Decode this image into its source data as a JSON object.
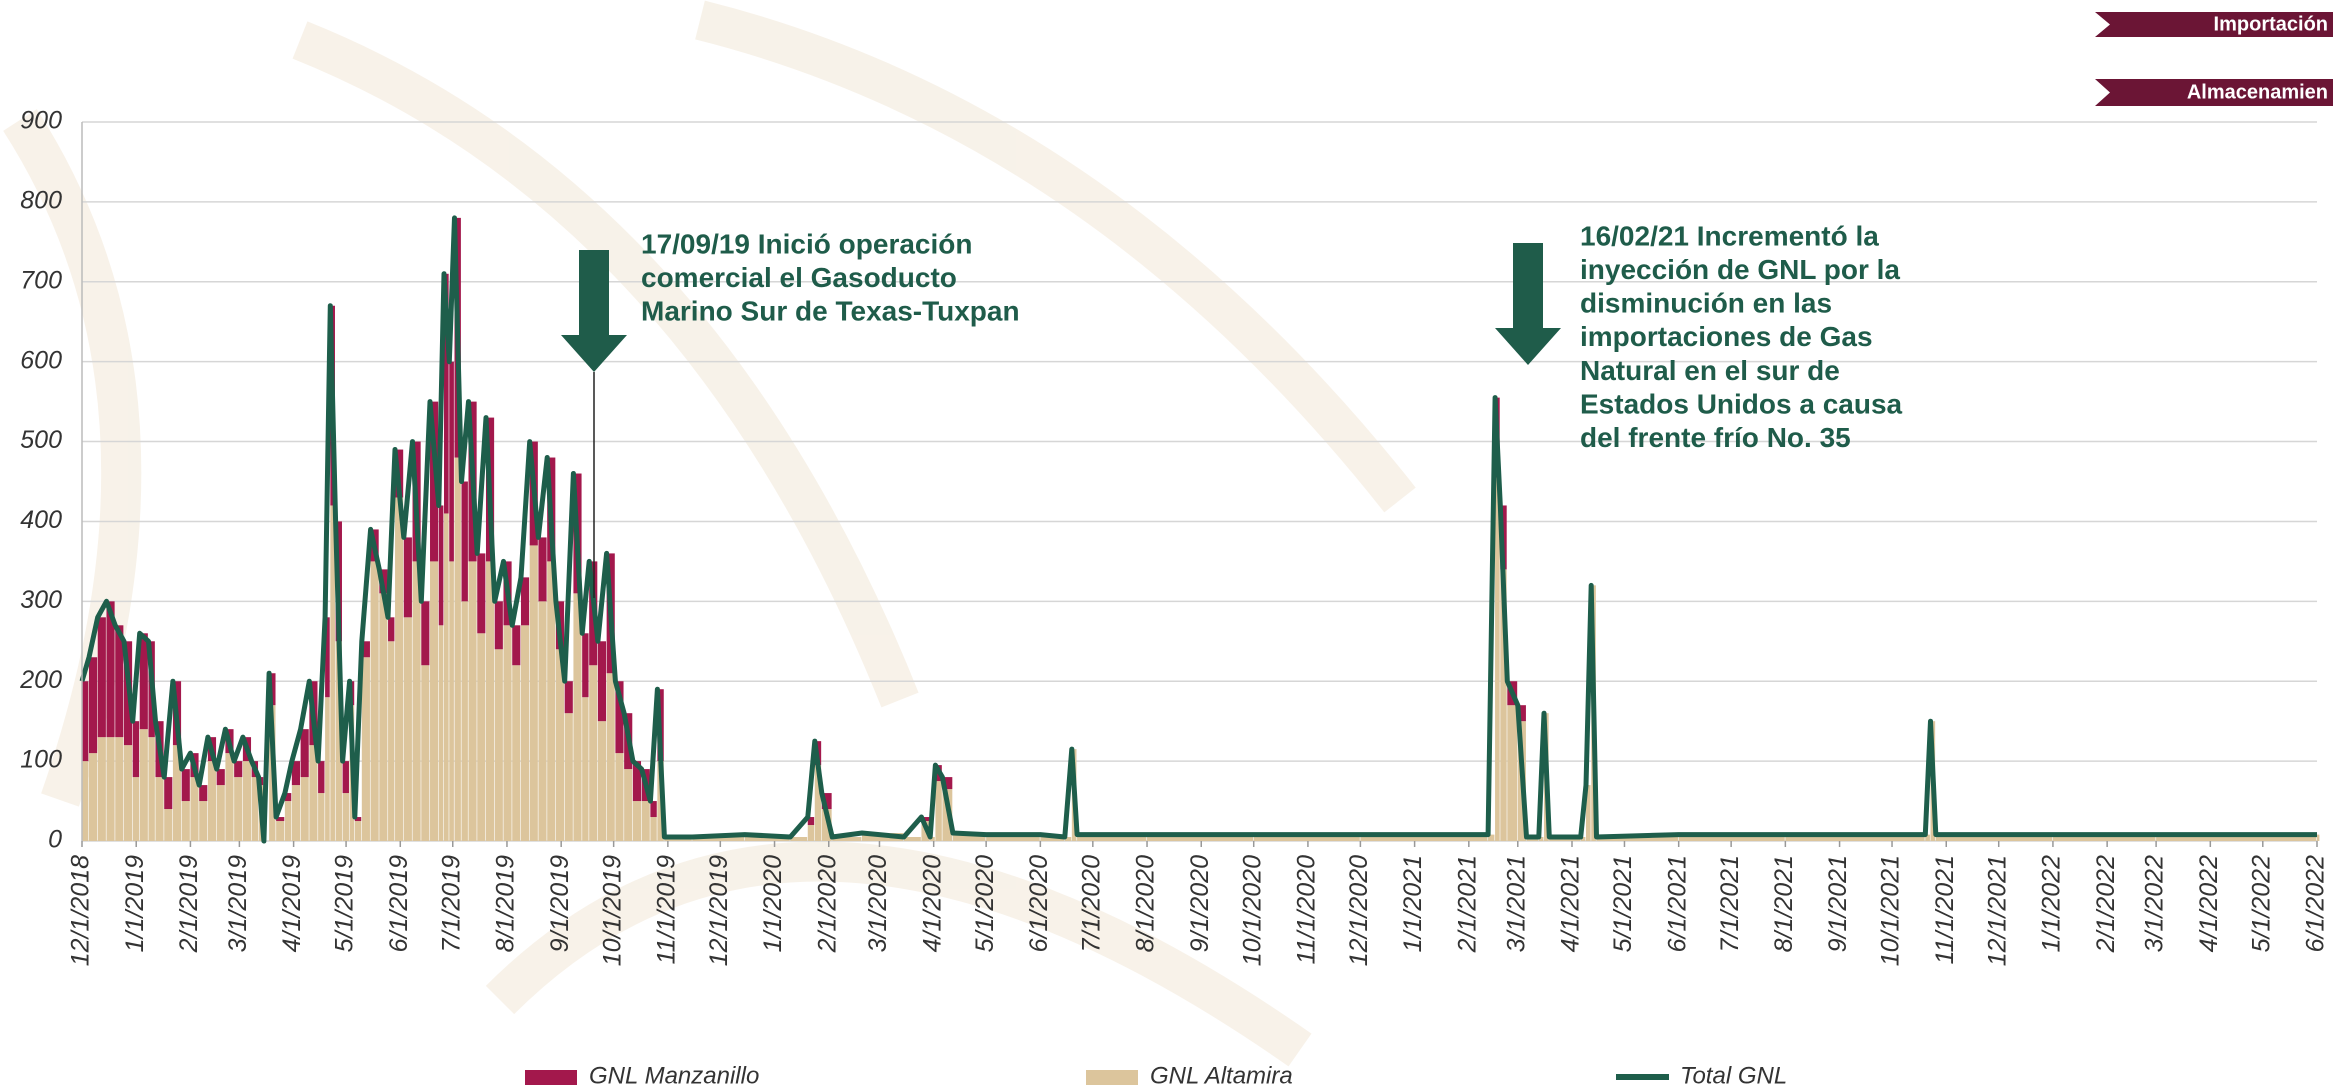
{
  "header_tabs": [
    "Importación",
    "Almacenamien"
  ],
  "chart_data": {
    "type": "bar",
    "stacked": true,
    "grid": true,
    "legend": "bottom",
    "annotations": [
      [
        "17/09/19 Inició operación",
        "comercial el Gasoducto",
        "Marino Sur de Texas-Tuxpan"
      ],
      [
        "16/02/21 Incrementó la",
        "inyección de GNL por la",
        "disminución en las",
        "importaciones de Gas",
        "Natural en el sur de",
        "Estados Unidos a causa",
        "del frente frío No. 35"
      ]
    ],
    "xlim": [
      "12/1/2018",
      "6/1/2022"
    ],
    "xticks": [
      "12/1/2018",
      "1/1/2019",
      "2/1/2019",
      "3/1/2019",
      "4/1/2019",
      "5/1/2019",
      "6/1/2019",
      "7/1/2019",
      "8/1/2019",
      "9/1/2019",
      "10/1/2019",
      "11/1/2019",
      "12/1/2019",
      "1/1/2020",
      "2/1/2020",
      "3/1/2020",
      "4/1/2020",
      "5/1/2020",
      "6/1/2020",
      "7/1/2020",
      "8/1/2020",
      "9/1/2020",
      "10/1/2020",
      "11/1/2020",
      "12/1/2020",
      "1/1/2021",
      "2/1/2021",
      "3/1/2021",
      "4/1/2021",
      "5/1/2021",
      "6/1/2021",
      "7/1/2021",
      "8/1/2021",
      "9/1/2021",
      "10/1/2021",
      "11/1/2021",
      "12/1/2021",
      "1/1/2022",
      "2/1/2022",
      "3/1/2022",
      "4/1/2022",
      "5/1/2022",
      "6/1/2022"
    ],
    "ylim": [
      0,
      900
    ],
    "yticks": [
      0,
      100,
      200,
      300,
      400,
      500,
      600,
      700,
      800,
      900
    ],
    "x": [
      "12/1/2018",
      "12/5/2018",
      "12/10/2018",
      "12/15/2018",
      "12/20/2018",
      "12/25/2018",
      "12/30/2018",
      "1/3/2019",
      "1/8/2019",
      "1/12/2019",
      "1/17/2019",
      "1/22/2019",
      "1/27/2019",
      "2/1/2019",
      "2/6/2019",
      "2/11/2019",
      "2/16/2019",
      "2/21/2019",
      "2/26/2019",
      "3/3/2019",
      "3/8/2019",
      "3/12/2019",
      "3/15/2019",
      "3/18/2019",
      "3/22/2019",
      "3/27/2019",
      "3/31/2019",
      "4/5/2019",
      "4/10/2019",
      "4/15/2019",
      "4/19/2019",
      "4/22/2019",
      "4/25/2019",
      "4/29/2019",
      "5/3/2019",
      "5/6/2019",
      "5/10/2019",
      "5/15/2019",
      "5/20/2019",
      "5/25/2019",
      "5/29/2019",
      "6/3/2019",
      "6/8/2019",
      "6/13/2019",
      "6/18/2019",
      "6/23/2019",
      "6/26/2019",
      "6/29/2019",
      "7/2/2019",
      "7/6/2019",
      "7/10/2019",
      "7/15/2019",
      "7/20/2019",
      "7/25/2019",
      "7/30/2019",
      "8/4/2019",
      "8/9/2019",
      "8/14/2019",
      "8/19/2019",
      "8/24/2019",
      "8/29/2019",
      "9/3/2019",
      "9/8/2019",
      "9/13/2019",
      "9/17/2019",
      "9/22/2019",
      "9/27/2019",
      "10/2/2019",
      "10/7/2019",
      "10/12/2019",
      "10/17/2019",
      "10/22/2019",
      "10/26/2019",
      "10/30/2019",
      "11/15/2019",
      "12/15/2019",
      "1/10/2020",
      "1/20/2020",
      "1/24/2020",
      "1/28/2020",
      "2/3/2020",
      "2/20/2020",
      "3/15/2020",
      "3/25/2020",
      "3/30/2020",
      "4/2/2020",
      "4/6/2020",
      "4/12/2020",
      "5/1/2020",
      "6/1/2020",
      "6/15/2020",
      "6/19/2020",
      "6/22/2020",
      "8/1/2020",
      "10/1/2020",
      "12/1/2020",
      "2/12/2021",
      "2/16/2021",
      "2/19/2021",
      "2/23/2021",
      "3/1/2021",
      "3/6/2021",
      "3/13/2021",
      "3/16/2021",
      "3/19/2021",
      "4/6/2021",
      "4/9/2021",
      "4/12/2021",
      "4/15/2021",
      "6/1/2021",
      "8/1/2021",
      "10/20/2021",
      "10/23/2021",
      "10/26/2021",
      "1/1/2022",
      "3/1/2022",
      "6/1/2022"
    ],
    "series": [
      {
        "name": "GNL Manzanillo",
        "type": "bar",
        "color": "#a3184c",
        "values": [
          100,
          120,
          150,
          170,
          140,
          130,
          70,
          120,
          120,
          70,
          40,
          80,
          40,
          30,
          20,
          30,
          20,
          30,
          20,
          30,
          20,
          10,
          0,
          40,
          5,
          10,
          30,
          60,
          80,
          40,
          100,
          250,
          150,
          40,
          30,
          5,
          20,
          40,
          30,
          30,
          60,
          100,
          150,
          80,
          200,
          150,
          300,
          250,
          300,
          150,
          200,
          100,
          180,
          60,
          80,
          50,
          60,
          130,
          80,
          130,
          60,
          40,
          150,
          80,
          130,
          100,
          150,
          90,
          70,
          50,
          40,
          20,
          90,
          0,
          0,
          0,
          0,
          10,
          30,
          20,
          0,
          0,
          0,
          5,
          0,
          20,
          15,
          0,
          0,
          0,
          0,
          0,
          0,
          0,
          0,
          0,
          0,
          100,
          80,
          30,
          20,
          0,
          0,
          0,
          0,
          0,
          0,
          0,
          0,
          0,
          0,
          0,
          0,
          0,
          0,
          0,
          0
        ]
      },
      {
        "name": "GNL Altamira",
        "type": "bar",
        "color": "#dcc59c",
        "values": [
          100,
          110,
          130,
          130,
          130,
          120,
          80,
          140,
          130,
          80,
          40,
          120,
          50,
          80,
          50,
          100,
          70,
          110,
          80,
          100,
          80,
          70,
          0,
          170,
          25,
          50,
          70,
          80,
          120,
          60,
          180,
          420,
          250,
          60,
          170,
          25,
          230,
          350,
          310,
          250,
          430,
          280,
          350,
          220,
          350,
          270,
          410,
          350,
          480,
          300,
          350,
          260,
          350,
          240,
          270,
          220,
          270,
          370,
          300,
          350,
          240,
          160,
          310,
          180,
          220,
          150,
          210,
          110,
          90,
          50,
          50,
          30,
          100,
          5,
          5,
          8,
          5,
          20,
          95,
          40,
          5,
          10,
          5,
          25,
          5,
          75,
          65,
          10,
          8,
          8,
          5,
          115,
          8,
          8,
          8,
          8,
          8,
          455,
          340,
          170,
          150,
          5,
          5,
          160,
          5,
          5,
          70,
          320,
          5,
          8,
          8,
          8,
          150,
          8,
          8,
          8,
          8
        ]
      },
      {
        "name": "Total GNL",
        "type": "line",
        "color": "#1e5e4b",
        "values": [
          200,
          230,
          280,
          300,
          270,
          250,
          150,
          260,
          250,
          150,
          80,
          200,
          90,
          110,
          70,
          130,
          90,
          140,
          100,
          130,
          100,
          80,
          0,
          210,
          30,
          60,
          100,
          140,
          200,
          100,
          280,
          670,
          400,
          100,
          200,
          30,
          250,
          390,
          340,
          280,
          490,
          380,
          500,
          300,
          550,
          420,
          710,
          600,
          780,
          450,
          550,
          360,
          530,
          300,
          350,
          270,
          330,
          500,
          380,
          480,
          300,
          200,
          460,
          260,
          350,
          250,
          360,
          200,
          160,
          100,
          90,
          50,
          190,
          5,
          5,
          8,
          5,
          30,
          125,
          60,
          5,
          10,
          5,
          30,
          5,
          95,
          80,
          10,
          8,
          8,
          5,
          115,
          8,
          8,
          8,
          8,
          8,
          555,
          420,
          200,
          170,
          5,
          5,
          160,
          5,
          5,
          70,
          320,
          5,
          8,
          8,
          8,
          150,
          8,
          8,
          8,
          8
        ]
      }
    ]
  }
}
